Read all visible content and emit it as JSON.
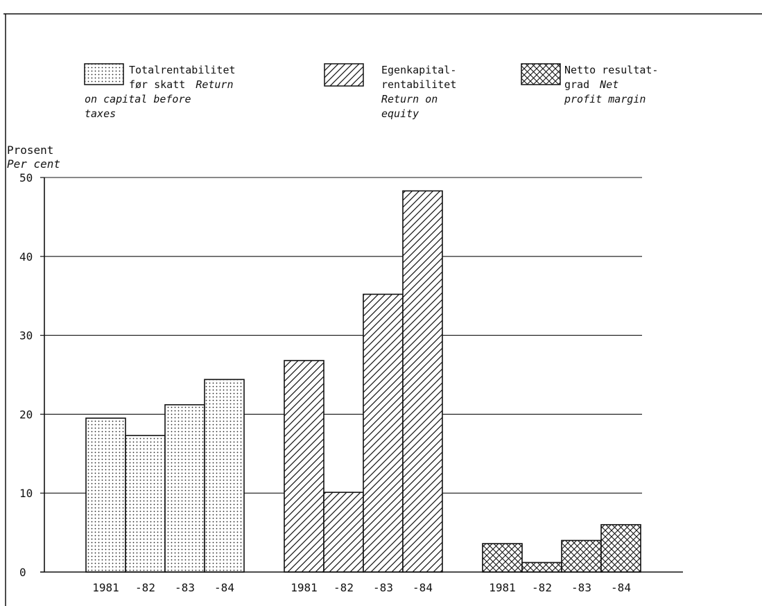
{
  "chart_data": {
    "type": "bar",
    "ylabel": "Prosent",
    "ylabel_en": "Per cent",
    "ylim": [
      0,
      50
    ],
    "yticks": [
      0,
      10,
      20,
      30,
      40,
      50
    ],
    "grid": true,
    "legend_position": "top",
    "groups": [
      {
        "legend": [
          "Totalrentabilitet",
          "før skatt",
          "Return",
          "on capital before",
          "taxes"
        ],
        "pattern": "dots",
        "categories": [
          "1981",
          "-82",
          "-83",
          "-84"
        ],
        "values": [
          19.5,
          17.3,
          21.2,
          24.4
        ]
      },
      {
        "legend": [
          "Egenkapital-",
          "rentabilitet",
          "Return on",
          "equity"
        ],
        "pattern": "hatch",
        "categories": [
          "1981",
          "-82",
          "-83",
          "-84"
        ],
        "values": [
          26.8,
          10.1,
          35.2,
          48.3
        ]
      },
      {
        "legend": [
          "Netto resultat-",
          "grad",
          "Net",
          "profit margin"
        ],
        "pattern": "crosshatch",
        "categories": [
          "1981",
          "-82",
          "-83",
          "-84"
        ],
        "values": [
          3.6,
          1.2,
          4.0,
          6.0
        ]
      }
    ]
  }
}
